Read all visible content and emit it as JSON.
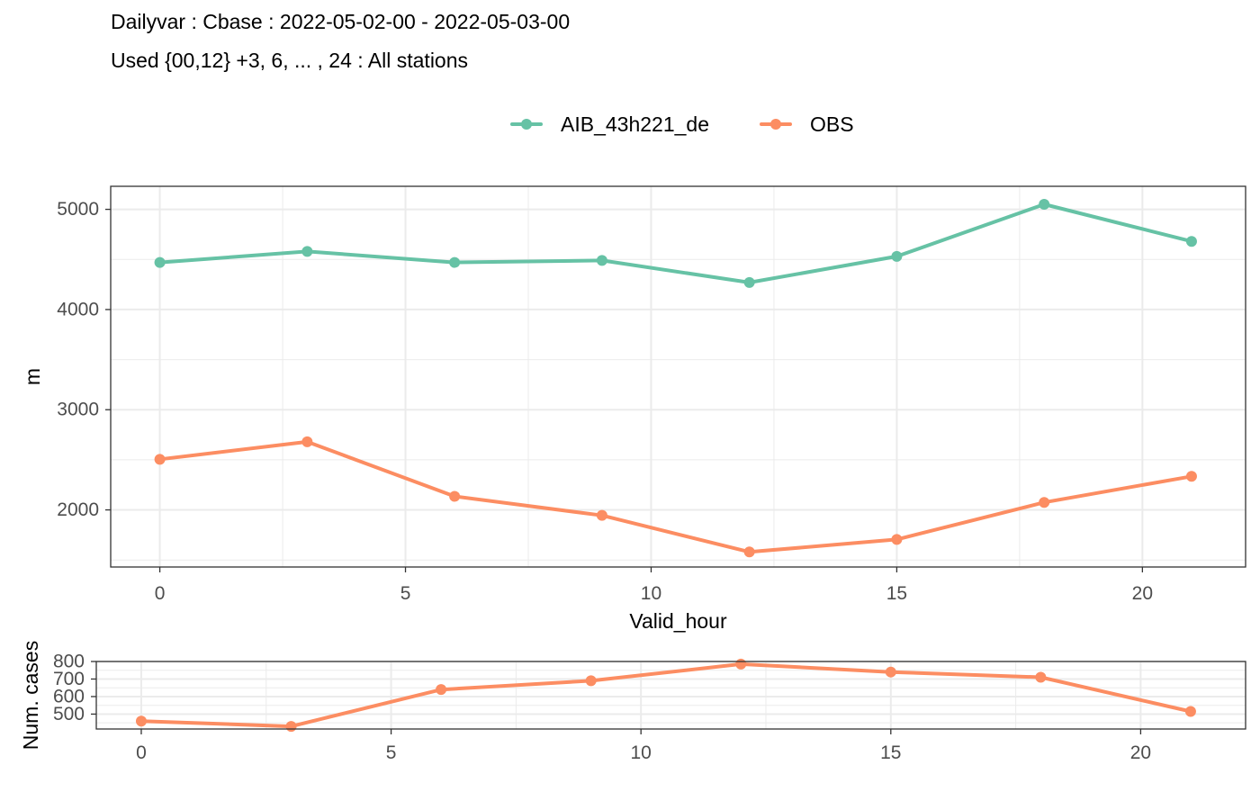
{
  "title": "Dailyvar : Cbase : 2022-05-02-00 - 2022-05-03-00",
  "subtitle": "Used {00,12} +3, 6, ... , 24 : All stations",
  "colors": {
    "model": "#66c2a5",
    "obs": "#fc8d62",
    "panel_border": "#333333",
    "grid": "#ebebeb",
    "tick_text": "#4d4d4d"
  },
  "chart_data": [
    {
      "type": "line",
      "xlabel": "Valid_hour",
      "ylabel": "m",
      "xlim": [
        -1,
        22.1
      ],
      "ylim": [
        1430,
        5230
      ],
      "xticks": [
        0,
        5,
        10,
        15,
        20
      ],
      "yticks": [
        2000,
        3000,
        4000,
        5000
      ],
      "grid": true,
      "legend_position": "top",
      "x": [
        0,
        3,
        6,
        9,
        12,
        15,
        18,
        21
      ],
      "series": [
        {
          "name": "AIB_43h221_de",
          "color": "#66c2a5",
          "values": [
            4470,
            4580,
            4470,
            4490,
            4270,
            4530,
            5050,
            4680
          ]
        },
        {
          "name": "OBS",
          "color": "#fc8d62",
          "values": [
            2505,
            2680,
            2135,
            1945,
            1580,
            1705,
            2075,
            2335
          ]
        }
      ]
    },
    {
      "type": "line",
      "xlabel": "",
      "ylabel": "Num. cases",
      "xlim": [
        -0.9,
        22.1
      ],
      "ylim": [
        415,
        800
      ],
      "xticks": [
        0,
        5,
        10,
        15,
        20
      ],
      "yticks": [
        500,
        600,
        700,
        800
      ],
      "grid": true,
      "x": [
        0,
        3,
        6,
        9,
        12,
        15,
        18,
        21
      ],
      "series": [
        {
          "color": "#fc8d62",
          "values": [
            460,
            430,
            640,
            690,
            785,
            740,
            710,
            515
          ]
        }
      ]
    }
  ]
}
